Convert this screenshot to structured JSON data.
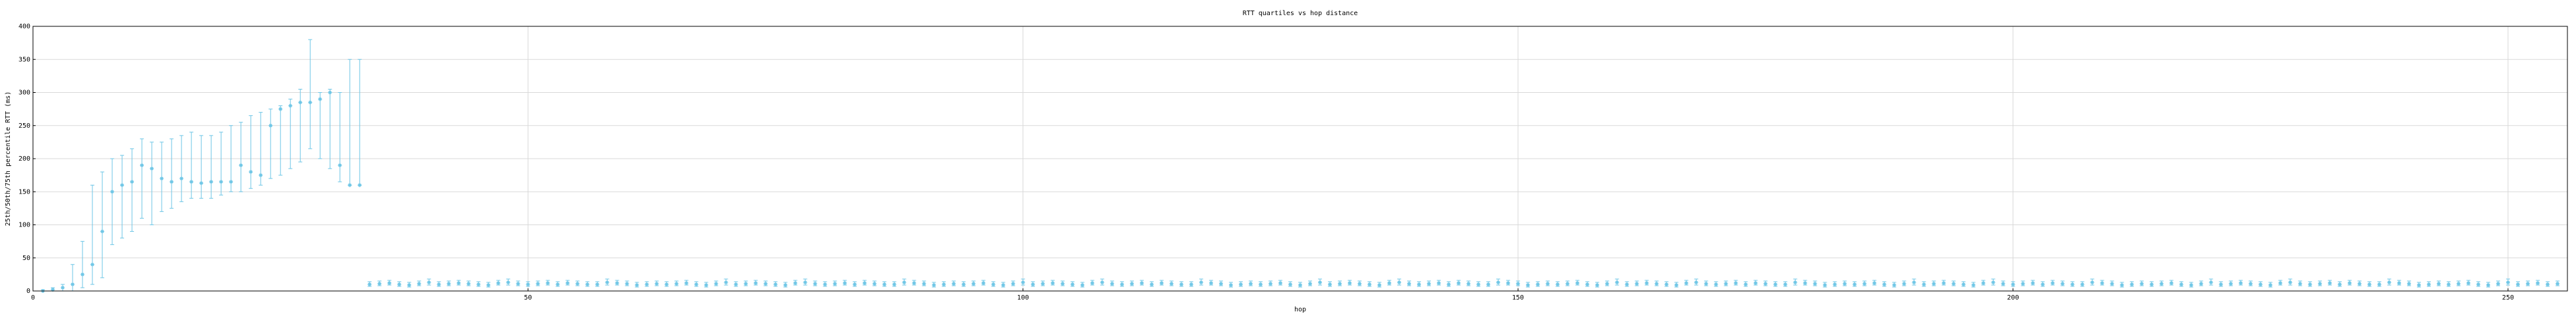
{
  "chart_data": {
    "type": "errorbar",
    "title": "RTT quartiles vs hop distance",
    "x_label": "hop",
    "y_label": "25th/50th/75th percentile RTT (ms)",
    "xlim": [
      0,
      256
    ],
    "ylim": [
      0,
      400
    ],
    "xticks": [
      0,
      50,
      100,
      150,
      200,
      250
    ],
    "yticks": [
      0,
      50,
      100,
      150,
      200,
      250,
      300,
      350,
      400
    ],
    "grid": true,
    "series": [
      {
        "color": "#6ec6e6",
        "x": [
          1,
          2,
          3,
          4,
          5,
          6,
          7,
          8,
          9,
          10,
          11,
          12,
          13,
          14,
          15,
          16,
          17,
          18,
          19,
          20,
          21,
          22,
          23,
          24,
          25,
          26,
          27,
          28,
          29,
          30,
          31,
          32,
          33,
          34,
          35,
          36,
          37,
          38,
          39,
          40,
          41,
          42,
          43,
          44,
          45,
          46,
          47,
          48,
          49,
          50,
          51,
          52,
          53,
          54,
          55,
          56,
          57,
          58,
          59,
          60,
          61,
          62,
          63,
          64,
          65,
          66,
          67,
          68,
          69,
          70,
          71,
          72,
          73,
          74,
          75,
          76,
          77,
          78,
          79,
          80,
          81,
          82,
          83,
          84,
          85,
          86,
          87,
          88,
          89,
          90,
          91,
          92,
          93,
          94,
          95,
          96,
          97,
          98,
          99,
          100,
          101,
          102,
          103,
          104,
          105,
          106,
          107,
          108,
          109,
          110,
          111,
          112,
          113,
          114,
          115,
          116,
          117,
          118,
          119,
          120,
          121,
          122,
          123,
          124,
          125,
          126,
          127,
          128,
          129,
          130,
          131,
          132,
          133,
          134,
          135,
          136,
          137,
          138,
          139,
          140,
          141,
          142,
          143,
          144,
          145,
          146,
          147,
          148,
          149,
          150,
          151,
          152,
          153,
          154,
          155,
          156,
          157,
          158,
          159,
          160,
          161,
          162,
          163,
          164,
          165,
          166,
          167,
          168,
          169,
          170,
          171,
          172,
          173,
          174,
          175,
          176,
          177,
          178,
          179,
          180,
          181,
          182,
          183,
          184,
          185,
          186,
          187,
          188,
          189,
          190,
          191,
          192,
          193,
          194,
          195,
          196,
          197,
          198,
          199,
          200,
          201,
          202,
          203,
          204,
          205,
          206,
          207,
          208,
          209,
          210,
          211,
          212,
          213,
          214,
          215,
          216,
          217,
          218,
          219,
          220,
          221,
          222,
          223,
          224,
          225,
          226,
          227,
          228,
          229,
          230,
          231,
          232,
          233,
          234,
          235,
          236,
          237,
          238,
          239,
          240,
          241,
          242,
          243,
          244,
          245,
          246,
          247,
          248,
          249,
          250,
          251,
          252,
          253,
          254,
          255
        ],
        "values": [
          0,
          2,
          5,
          10,
          25,
          40,
          90,
          150,
          160,
          165,
          190,
          185,
          170,
          165,
          170,
          165,
          163,
          165,
          165,
          165,
          190,
          180,
          175,
          250,
          275,
          280,
          285,
          285,
          290,
          300,
          190,
          160,
          160,
          10,
          11,
          12,
          10,
          9,
          11,
          13,
          10,
          11,
          12,
          11,
          10,
          9,
          12,
          13,
          11,
          10,
          11,
          12,
          10,
          12,
          11,
          10,
          10,
          13,
          12,
          11,
          9,
          10,
          11,
          10,
          11,
          12,
          10,
          9,
          11,
          13,
          10,
          11,
          12,
          11,
          10,
          9,
          12,
          13,
          11,
          10,
          11,
          12,
          10,
          12,
          11,
          10,
          10,
          13,
          12,
          11,
          9,
          10,
          11,
          10,
          11,
          12,
          10,
          9,
          11,
          13,
          10,
          11,
          12,
          11,
          10,
          9,
          12,
          13,
          11,
          10,
          11,
          12,
          10,
          12,
          11,
          10,
          10,
          13,
          12,
          11,
          9,
          10,
          11,
          10,
          11,
          12,
          10,
          9,
          11,
          13,
          10,
          11,
          12,
          11,
          10,
          9,
          12,
          13,
          11,
          10,
          11,
          12,
          10,
          12,
          11,
          10,
          10,
          13,
          12,
          11,
          9,
          10,
          11,
          10,
          11,
          12,
          10,
          9,
          11,
          13,
          10,
          11,
          12,
          11,
          10,
          9,
          12,
          13,
          11,
          10,
          11,
          12,
          10,
          12,
          11,
          10,
          10,
          13,
          12,
          11,
          9,
          10,
          11,
          10,
          11,
          12,
          10,
          9,
          11,
          13,
          10,
          11,
          12,
          11,
          10,
          9,
          12,
          13,
          11,
          10,
          11,
          12,
          10,
          12,
          11,
          10,
          10,
          13,
          12,
          11,
          9,
          10,
          11,
          10,
          11,
          12,
          10,
          9,
          11,
          13,
          10,
          11,
          12,
          11,
          10,
          9,
          12,
          13,
          11,
          10,
          11,
          12,
          10,
          12,
          11,
          10,
          10,
          13,
          12,
          11,
          9,
          10,
          11,
          10,
          11,
          12,
          10,
          9,
          11,
          13,
          10,
          11,
          12,
          10,
          11
        ],
        "lower": [
          0,
          0,
          0,
          0,
          5,
          10,
          20,
          70,
          80,
          90,
          110,
          100,
          120,
          125,
          135,
          140,
          140,
          140,
          145,
          150,
          150,
          155,
          160,
          170,
          175,
          185,
          195,
          215,
          200,
          185,
          165,
          160,
          160,
          7,
          8,
          9,
          7,
          6,
          8,
          9,
          7,
          8,
          9,
          8,
          7,
          6,
          9,
          9,
          8,
          7,
          8,
          9,
          7,
          9,
          8,
          7,
          7,
          9,
          9,
          8,
          6,
          7,
          8,
          7,
          8,
          9,
          7,
          6,
          8,
          9,
          7,
          8,
          9,
          8,
          7,
          6,
          9,
          9,
          8,
          7,
          8,
          9,
          7,
          9,
          8,
          7,
          7,
          9,
          9,
          8,
          6,
          7,
          8,
          7,
          8,
          9,
          7,
          6,
          8,
          9,
          7,
          8,
          9,
          8,
          7,
          6,
          9,
          9,
          8,
          7,
          8,
          9,
          7,
          9,
          8,
          7,
          7,
          9,
          9,
          8,
          6,
          7,
          8,
          7,
          8,
          9,
          7,
          6,
          8,
          9,
          7,
          8,
          9,
          8,
          7,
          6,
          9,
          9,
          8,
          7,
          8,
          9,
          7,
          9,
          8,
          7,
          7,
          9,
          9,
          8,
          6,
          7,
          8,
          7,
          8,
          9,
          7,
          6,
          8,
          9,
          7,
          8,
          9,
          8,
          7,
          6,
          9,
          9,
          8,
          7,
          8,
          9,
          7,
          9,
          8,
          7,
          7,
          9,
          9,
          8,
          6,
          7,
          8,
          7,
          8,
          9,
          7,
          6,
          8,
          9,
          7,
          8,
          9,
          8,
          7,
          6,
          9,
          9,
          8,
          7,
          8,
          9,
          7,
          9,
          8,
          7,
          7,
          9,
          9,
          8,
          6,
          7,
          8,
          7,
          8,
          9,
          7,
          6,
          8,
          9,
          7,
          8,
          9,
          8,
          7,
          6,
          9,
          9,
          8,
          7,
          8,
          9,
          7,
          9,
          8,
          7,
          7,
          9,
          9,
          8,
          6,
          7,
          8,
          7,
          8,
          9,
          7,
          6,
          8,
          9,
          7,
          8,
          9,
          7,
          8
        ],
        "upper": [
          2,
          5,
          10,
          40,
          75,
          160,
          180,
          200,
          205,
          215,
          230,
          225,
          225,
          230,
          235,
          240,
          235,
          235,
          240,
          250,
          255,
          265,
          270,
          275,
          280,
          290,
          305,
          380,
          300,
          305,
          300,
          350,
          350,
          14,
          15,
          16,
          14,
          13,
          15,
          18,
          14,
          15,
          16,
          15,
          14,
          13,
          16,
          18,
          15,
          14,
          15,
          16,
          14,
          16,
          15,
          14,
          14,
          18,
          16,
          15,
          13,
          14,
          15,
          14,
          15,
          16,
          14,
          13,
          15,
          18,
          14,
          15,
          16,
          15,
          14,
          13,
          16,
          18,
          15,
          14,
          15,
          16,
          14,
          16,
          15,
          14,
          14,
          18,
          16,
          15,
          13,
          14,
          15,
          14,
          15,
          16,
          14,
          13,
          15,
          18,
          14,
          15,
          16,
          15,
          14,
          13,
          16,
          18,
          15,
          14,
          15,
          16,
          14,
          16,
          15,
          14,
          14,
          18,
          16,
          15,
          13,
          14,
          15,
          14,
          15,
          16,
          14,
          13,
          15,
          18,
          14,
          15,
          16,
          15,
          14,
          13,
          16,
          18,
          15,
          14,
          15,
          16,
          14,
          16,
          15,
          14,
          14,
          18,
          16,
          15,
          13,
          14,
          15,
          14,
          15,
          16,
          14,
          13,
          15,
          18,
          14,
          15,
          16,
          15,
          14,
          13,
          16,
          18,
          15,
          14,
          15,
          16,
          14,
          16,
          15,
          14,
          14,
          18,
          16,
          15,
          13,
          14,
          15,
          14,
          15,
          16,
          14,
          13,
          15,
          18,
          14,
          15,
          16,
          15,
          14,
          13,
          16,
          18,
          15,
          14,
          15,
          16,
          14,
          16,
          15,
          14,
          14,
          18,
          16,
          15,
          13,
          14,
          15,
          14,
          15,
          16,
          14,
          13,
          15,
          18,
          14,
          15,
          16,
          15,
          14,
          13,
          16,
          18,
          15,
          14,
          15,
          16,
          14,
          16,
          15,
          14,
          14,
          18,
          16,
          15,
          13,
          14,
          15,
          14,
          15,
          16,
          14,
          13,
          15,
          18,
          14,
          15,
          16,
          14,
          15
        ]
      }
    ]
  }
}
